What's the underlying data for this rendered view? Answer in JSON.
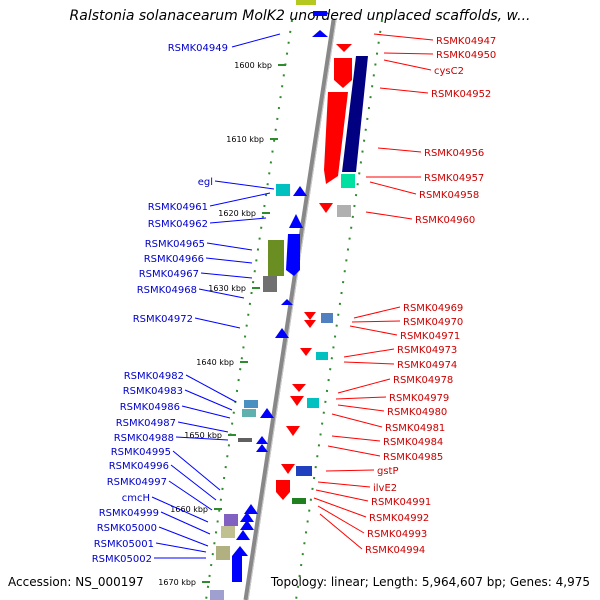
{
  "title": "Ralstonia solanacearum MolK2 unordered unplaced scaffolds, w...",
  "footer": {
    "accession": "Accession: NS_000197",
    "topology": "Topology: linear; Length: 5,964,607 bp; Genes: 4,975"
  },
  "colors": {
    "forward_gene": "#0000ff",
    "reverse_gene": "#ff0000",
    "forward_label": "#0000cc",
    "reverse_label": "#cc0000",
    "backbone": "#888888",
    "tick": "#2e8b2e"
  },
  "kbp_marks": [
    "1600 kbp",
    "1610 kbp",
    "1620 kbp",
    "1630 kbp",
    "1640 kbp",
    "1650 kbp",
    "1660 kbp",
    "1670 kbp"
  ],
  "left_labels": [
    "RSMK04949",
    "egl",
    "RSMK04961",
    "RSMK04962",
    "RSMK04965",
    "RSMK04966",
    "RSMK04967",
    "RSMK04968",
    "RSMK04972",
    "RSMK04982",
    "RSMK04983",
    "RSMK04986",
    "RSMK04987",
    "RSMK04988",
    "RSMK04995",
    "RSMK04996",
    "RSMK04997",
    "cmcH",
    "RSMK04999",
    "RSMK05000",
    "RSMK05001",
    "RSMK05002"
  ],
  "right_labels": [
    "RSMK04947",
    "RSMK04950",
    "cysC2",
    "RSMK04952",
    "RSMK04956",
    "RSMK04957",
    "RSMK04958",
    "RSMK04960",
    "RSMK04969",
    "RSMK04970",
    "RSMK04971",
    "RSMK04973",
    "RSMK04974",
    "RSMK04978",
    "RSMK04979",
    "RSMK04980",
    "RSMK04981",
    "RSMK04984",
    "RSMK04985",
    "gstP",
    "ilvE2",
    "RSMK04991",
    "RSMK04992",
    "RSMK04993",
    "RSMK04994"
  ]
}
